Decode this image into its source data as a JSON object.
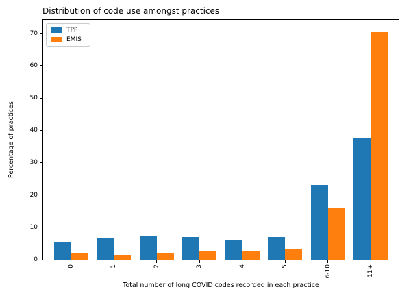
{
  "chart_data": {
    "type": "bar",
    "title": "Distribution of code use amongst practices",
    "xlabel": "Total number of long COVID codes recorded in each practice",
    "ylabel": "Percentage of practices",
    "categories": [
      "0",
      "1",
      "2",
      "3",
      "4",
      "5",
      "6-10",
      "11+"
    ],
    "series": [
      {
        "name": "TPP",
        "color": "#1f77b4",
        "values": [
          5.3,
          6.8,
          7.5,
          6.9,
          6.0,
          7.0,
          23.2,
          37.5
        ]
      },
      {
        "name": "EMIS",
        "color": "#ff7f0e",
        "values": [
          1.9,
          1.3,
          2.0,
          2.8,
          2.8,
          3.1,
          15.8,
          70.5
        ]
      }
    ],
    "yticks": [
      0,
      10,
      20,
      30,
      40,
      50,
      60,
      70
    ],
    "ylim": [
      0,
      74.2
    ],
    "xlim": [
      -0.65,
      7.65
    ],
    "bar_width": 0.4,
    "grid": false,
    "legend_position": "upper-left",
    "tick_label_rotation_x": 90
  }
}
